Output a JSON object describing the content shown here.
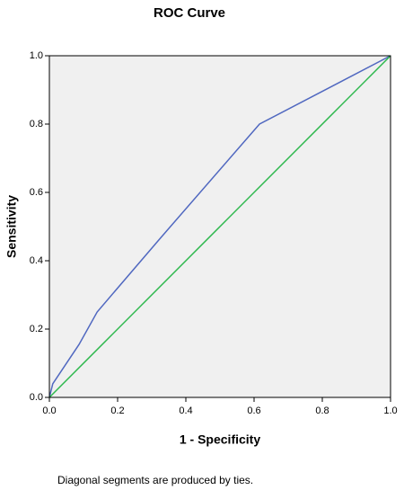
{
  "chart_data": {
    "type": "line",
    "title": "ROC Curve",
    "x_label": "1 - Specificity",
    "y_label": "Sensitivity",
    "footnote": "Diagonal segments are produced by ties.",
    "xlim": [
      0,
      1
    ],
    "ylim": [
      0,
      1
    ],
    "xticks": [
      {
        "value": 0,
        "label": "0.0"
      },
      0.2,
      0.4,
      0.6,
      0.8,
      {
        "value": 1,
        "label": "1.0"
      }
    ],
    "yticks": [
      {
        "value": 0,
        "label": "0.0"
      },
      0.2,
      0.4,
      0.6,
      0.8,
      {
        "value": 1,
        "label": "1.0"
      }
    ],
    "background": "#f0f0f0",
    "series": [
      {
        "color": "#5068c0",
        "x": [
          0,
          0.01,
          0.087,
          0.14,
          0.32,
          0.616,
          1
        ],
        "values": [
          0,
          0.04,
          0.155,
          0.25,
          0.46,
          0.8,
          1
        ]
      },
      {
        "color": "#2db84d",
        "x": [
          0,
          1
        ],
        "values": [
          0,
          1
        ]
      }
    ]
  }
}
